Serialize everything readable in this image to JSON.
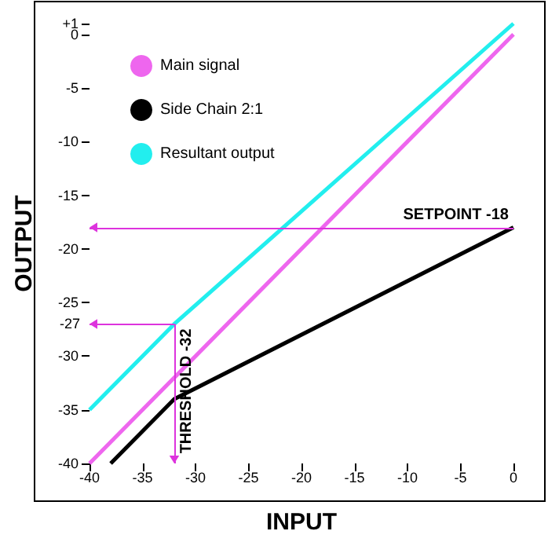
{
  "chart_data": {
    "type": "line",
    "xlabel": "INPUT",
    "ylabel": "OUTPUT",
    "xlim": [
      -40,
      0
    ],
    "xticks": [
      -40,
      -35,
      -30,
      -25,
      -20,
      -15,
      -10,
      -5,
      0
    ],
    "ylim": [
      -40,
      1
    ],
    "yticks": [
      {
        "value": 1,
        "label": "+1"
      },
      0,
      -5,
      -10,
      -15,
      -20,
      -25,
      -30,
      -35,
      -40
    ],
    "series": [
      {
        "name": "Main signal",
        "color": "#ee66ee",
        "x": [
          -40,
          0
        ],
        "values": [
          -40,
          0
        ]
      },
      {
        "name": "Side Chain 2:1",
        "color": "#000000",
        "x": [
          -38,
          -32,
          0
        ],
        "values": [
          -40,
          -34,
          -18
        ]
      },
      {
        "name": "Resultant output",
        "color": "#22eeee",
        "x": [
          -40,
          -32,
          0
        ],
        "values": [
          -35,
          -27,
          1
        ]
      }
    ],
    "ref_lines": [
      {
        "axis": "y",
        "value": -18,
        "label": "SETPOINT -18",
        "color": "#dd33dd"
      },
      {
        "axis": "y",
        "value": -27,
        "label": "-27",
        "color": "#dd33dd"
      },
      {
        "axis": "x",
        "value": -32,
        "label": "THRESHOLD -32",
        "color": "#dd33dd"
      }
    ],
    "legend": "top left",
    "marker": "none",
    "line_style": "solid",
    "grid": false
  }
}
